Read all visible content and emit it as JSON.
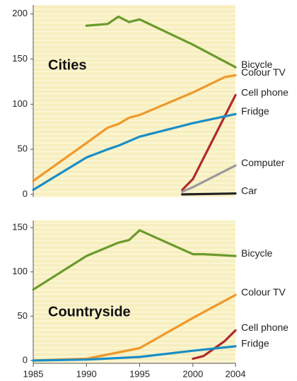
{
  "chart_data": [
    {
      "type": "line",
      "title": "Cities",
      "xlim": [
        1985,
        2004
      ],
      "ylim": [
        0,
        210
      ],
      "yticks": [
        0,
        50,
        100,
        150,
        200
      ],
      "series": [
        {
          "name": "Bicycle",
          "color": "#6b9a2c",
          "x": [
            1990,
            1992,
            1993,
            1994,
            1995,
            2000,
            2004
          ],
          "values": [
            187,
            189,
            197,
            191,
            194,
            166,
            141
          ]
        },
        {
          "name": "Colour TV",
          "color": "#f0982a",
          "x": [
            1985,
            1990,
            1992,
            1993,
            1994,
            1995,
            2000,
            2003,
            2004
          ],
          "values": [
            15,
            57,
            74,
            78,
            85,
            88,
            113,
            130,
            132
          ]
        },
        {
          "name": "Cell phone",
          "color": "#b3282e",
          "x": [
            1999,
            2000,
            2004
          ],
          "values": [
            5,
            17,
            110
          ]
        },
        {
          "name": "Fridge",
          "color": "#1a8dc6",
          "x": [
            1985,
            1990,
            1992,
            1993,
            1994,
            1995,
            2000,
            2004
          ],
          "values": [
            5,
            41,
            50,
            54,
            59,
            64,
            79,
            89
          ]
        },
        {
          "name": "Computer",
          "color": "#9a9a9a",
          "x": [
            1999,
            2000,
            2004
          ],
          "values": [
            3,
            8,
            32
          ]
        },
        {
          "name": "Car",
          "color": "#222222",
          "x": [
            1999,
            2004
          ],
          "values": [
            0,
            1
          ]
        }
      ]
    },
    {
      "type": "line",
      "title": "Countryside",
      "xlim": [
        1985,
        2004
      ],
      "ylim": [
        0,
        158
      ],
      "yticks": [
        0,
        50,
        100,
        150
      ],
      "xticks": [
        1985,
        1990,
        1995,
        2000,
        2004
      ],
      "series": [
        {
          "name": "Bicycle",
          "color": "#6b9a2c",
          "x": [
            1985,
            1990,
            1993,
            1994,
            1995,
            2000,
            2001,
            2004
          ],
          "values": [
            80,
            118,
            133,
            136,
            147,
            120,
            120,
            118
          ]
        },
        {
          "name": "Colour TV",
          "color": "#f0982a",
          "x": [
            1985,
            1990,
            1995,
            2000,
            2004
          ],
          "values": [
            0,
            2,
            14,
            48,
            74
          ]
        },
        {
          "name": "Cell phone",
          "color": "#b3282e",
          "x": [
            2000,
            2001,
            2003,
            2004
          ],
          "values": [
            2,
            5,
            22,
            34
          ]
        },
        {
          "name": "Fridge",
          "color": "#1a8dc6",
          "x": [
            1985,
            1990,
            1995,
            2000,
            2004
          ],
          "values": [
            0,
            1,
            4,
            11,
            16
          ]
        }
      ]
    }
  ]
}
